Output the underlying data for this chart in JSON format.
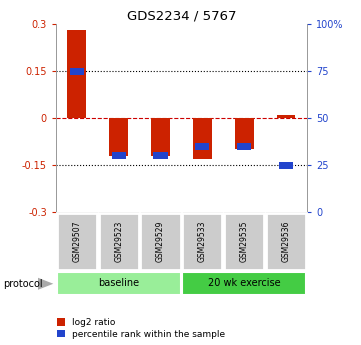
{
  "title": "GDS2234 / 5767",
  "samples": [
    "GSM29507",
    "GSM29523",
    "GSM29529",
    "GSM29533",
    "GSM29535",
    "GSM29536"
  ],
  "log2_ratio": [
    0.28,
    -0.12,
    -0.12,
    -0.13,
    -0.1,
    0.01
  ],
  "percentile_rank": [
    75,
    30,
    30,
    35,
    35,
    25
  ],
  "ylim_left": [
    -0.3,
    0.3
  ],
  "ylim_right": [
    0,
    100
  ],
  "yticks_left": [
    -0.3,
    -0.15,
    0,
    0.15,
    0.3
  ],
  "yticks_right": [
    0,
    25,
    50,
    75,
    100
  ],
  "ytick_labels_left": [
    "-0.3",
    "-0.15",
    "0",
    "0.15",
    "0.3"
  ],
  "ytick_labels_right": [
    "0",
    "25",
    "50",
    "75",
    "100%"
  ],
  "groups": [
    {
      "label": "baseline",
      "color": "#99ee99",
      "start": 0,
      "end": 3
    },
    {
      "label": "20 wk exercise",
      "color": "#44cc44",
      "start": 3,
      "end": 6
    }
  ],
  "bar_width": 0.45,
  "log2_color": "#cc2200",
  "percentile_color": "#2244cc",
  "zero_line_color": "#cc0000",
  "background_color": "#ffffff",
  "sample_box_color": "#cccccc",
  "legend_items": [
    "log2 ratio",
    "percentile rank within the sample"
  ]
}
